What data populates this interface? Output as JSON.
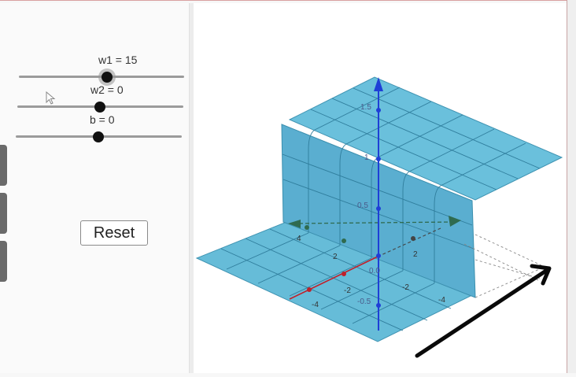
{
  "sliders": [
    {
      "label": "w1 = 15",
      "value": 15
    },
    {
      "label": "w2 = 0",
      "value": 0
    },
    {
      "label": "b = 0",
      "value": 0
    }
  ],
  "reset_button": {
    "label": "Reset"
  },
  "axis_labels": {
    "z_top": "1.5",
    "z_mid": "1",
    "z_low": "0.5",
    "y_pos_4": "4",
    "y_pos_2": "2",
    "x_pos_2": "2",
    "origin": "0.0",
    "x_neg_2": "-2",
    "x_neg_4": "-4",
    "y_neg_2": "-2",
    "y_neg_4": "-4",
    "z_neg_05": "-0.5"
  },
  "colors": {
    "surface": "#5fb6d4",
    "surface_edge": "#3b8fae",
    "z_axis": "#1f3fd6",
    "x_axis": "#c0202a",
    "y_axis": "#2f6b4f"
  },
  "icons": {
    "cursor": "pointer-cursor-icon",
    "annotation": "drawn-arrow-icon"
  }
}
